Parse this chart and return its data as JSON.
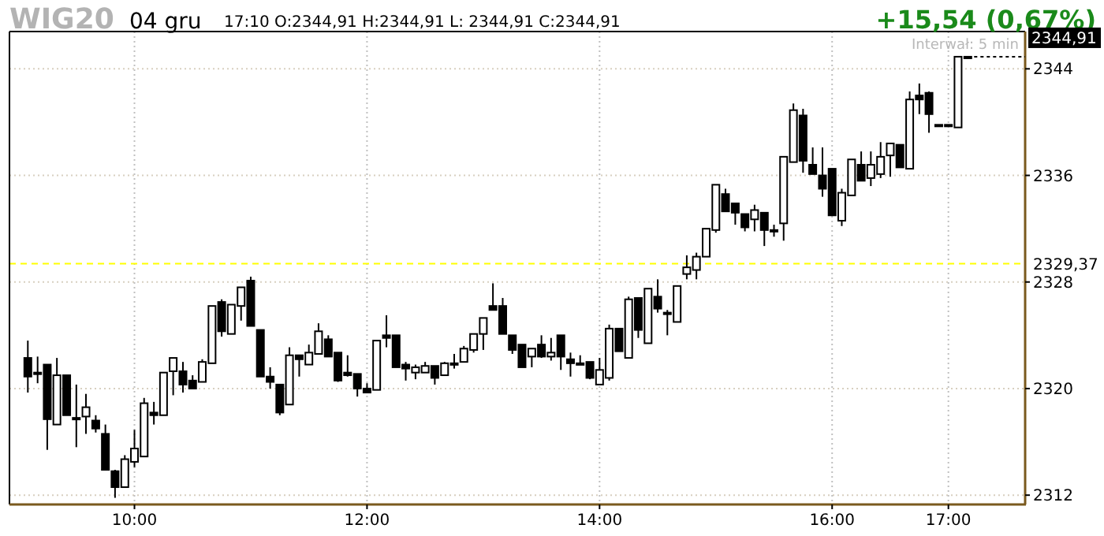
{
  "chart_data": {
    "type": "candlestick",
    "title": "WIG20",
    "subtitle": "04 gru",
    "annotations": [
      "17:10 O:2344,91 H:2344,91 L: 2344,91 C:2344,91",
      "+15,54 (0,67%)",
      "Interwał: 5 min",
      {
        "text": "2344,91",
        "x": 17.167,
        "y": 2344.91
      }
    ],
    "x": [
      9.083,
      9.167,
      9.25,
      9.333,
      9.417,
      9.5,
      9.583,
      9.667,
      9.75,
      9.833,
      9.917,
      10,
      10.083,
      10.167,
      10.25,
      10.333,
      10.417,
      10.5,
      10.583,
      10.667,
      10.75,
      10.833,
      10.917,
      11,
      11.083,
      11.167,
      11.25,
      11.333,
      11.417,
      11.5,
      11.583,
      11.667,
      11.75,
      11.833,
      11.917,
      12,
      12.083,
      12.167,
      12.25,
      12.333,
      12.417,
      12.5,
      12.583,
      12.667,
      12.75,
      12.833,
      12.917,
      13,
      13.083,
      13.167,
      13.25,
      13.333,
      13.417,
      13.5,
      13.583,
      13.667,
      13.75,
      13.833,
      13.917,
      14,
      14.083,
      14.167,
      14.25,
      14.333,
      14.417,
      14.5,
      14.583,
      14.667,
      14.75,
      14.833,
      14.917,
      15,
      15.083,
      15.167,
      15.25,
      15.333,
      15.417,
      15.5,
      15.583,
      15.667,
      15.75,
      15.833,
      15.917,
      16,
      16.083,
      16.167,
      16.25,
      16.333,
      16.417,
      16.5,
      16.583,
      16.667,
      16.75,
      16.833,
      16.917,
      17,
      17.083,
      17.167
    ],
    "ohlc": [
      [
        2322.3,
        2323.6,
        2319.7,
        2320.9
      ],
      [
        2321.2,
        2322.4,
        2320.4,
        2321.1
      ],
      [
        2321.8,
        2321.8,
        2315.4,
        2317.7
      ],
      [
        2317.3,
        2322.3,
        2317.3,
        2321.0
      ],
      [
        2321.0,
        2321.0,
        2318.0,
        2318.0
      ],
      [
        2317.8,
        2320.3,
        2315.6,
        2317.7
      ],
      [
        2317.9,
        2319.6,
        2316.6,
        2318.6
      ],
      [
        2317.6,
        2318.0,
        2316.7,
        2317.0
      ],
      [
        2316.6,
        2317.3,
        2313.9,
        2313.9
      ],
      [
        2313.8,
        2313.9,
        2311.8,
        2312.6
      ],
      [
        2312.6,
        2315.0,
        2312.6,
        2314.7
      ],
      [
        2314.5,
        2316.9,
        2314.1,
        2315.5
      ],
      [
        2314.9,
        2319.3,
        2314.9,
        2318.9
      ],
      [
        2318.2,
        2319.0,
        2317.3,
        2318.0
      ],
      [
        2318.0,
        2321.2,
        2318.0,
        2321.2
      ],
      [
        2321.3,
        2322.3,
        2319.5,
        2322.3
      ],
      [
        2321.3,
        2322.0,
        2319.7,
        2320.3
      ],
      [
        2320.6,
        2321.0,
        2320.0,
        2320.0
      ],
      [
        2320.5,
        2322.2,
        2320.5,
        2322.0
      ],
      [
        2321.9,
        2326.2,
        2321.9,
        2326.2
      ],
      [
        2326.5,
        2326.7,
        2323.9,
        2324.3
      ],
      [
        2324.1,
        2326.3,
        2324.1,
        2326.3
      ],
      [
        2326.2,
        2327.6,
        2325.1,
        2327.6
      ],
      [
        2328.1,
        2328.4,
        2324.7,
        2324.7
      ],
      [
        2324.4,
        2324.4,
        2320.9,
        2320.9
      ],
      [
        2320.9,
        2321.6,
        2320.0,
        2320.5
      ],
      [
        2320.3,
        2320.3,
        2318.0,
        2318.2
      ],
      [
        2318.8,
        2323.1,
        2318.8,
        2322.5
      ],
      [
        2322.5,
        2322.5,
        2320.9,
        2322.2
      ],
      [
        2321.8,
        2323.3,
        2321.8,
        2322.7
      ],
      [
        2322.6,
        2324.9,
        2322.6,
        2324.3
      ],
      [
        2323.7,
        2324.0,
        2322.4,
        2322.4
      ],
      [
        2322.7,
        2322.7,
        2320.5,
        2320.6
      ],
      [
        2321.2,
        2322.5,
        2320.9,
        2321.0
      ],
      [
        2321.1,
        2321.1,
        2319.4,
        2320.0
      ],
      [
        2320.0,
        2320.4,
        2319.7,
        2319.7
      ],
      [
        2319.9,
        2323.6,
        2319.9,
        2323.6
      ],
      [
        2324.0,
        2325.5,
        2323.1,
        2323.8
      ],
      [
        2324.0,
        2324.0,
        2321.6,
        2321.6
      ],
      [
        2321.8,
        2322.0,
        2320.6,
        2321.5
      ],
      [
        2321.2,
        2321.8,
        2320.7,
        2321.6
      ],
      [
        2321.2,
        2322.0,
        2321.2,
        2321.7
      ],
      [
        2321.7,
        2321.7,
        2320.3,
        2320.8
      ],
      [
        2321.0,
        2322.0,
        2321.0,
        2321.9
      ],
      [
        2321.9,
        2322.6,
        2321.5,
        2321.8
      ],
      [
        2322.0,
        2323.2,
        2322.0,
        2323.0
      ],
      [
        2322.9,
        2324.1,
        2322.7,
        2324.1
      ],
      [
        2324.1,
        2325.3,
        2322.9,
        2325.3
      ],
      [
        2326.2,
        2327.9,
        2325.9,
        2325.9
      ],
      [
        2326.2,
        2326.8,
        2324.1,
        2324.1
      ],
      [
        2324.0,
        2324.0,
        2322.6,
        2322.9
      ],
      [
        2323.3,
        2323.3,
        2321.6,
        2321.6
      ],
      [
        2322.4,
        2323.0,
        2321.6,
        2323.0
      ],
      [
        2323.3,
        2324.0,
        2322.3,
        2322.4
      ],
      [
        2322.4,
        2323.8,
        2322.1,
        2322.7
      ],
      [
        2324.0,
        2324.0,
        2321.4,
        2322.4
      ],
      [
        2322.2,
        2322.7,
        2320.9,
        2321.9
      ],
      [
        2321.9,
        2322.5,
        2321.9,
        2321.9
      ],
      [
        2322.0,
        2322.0,
        2320.7,
        2320.8
      ],
      [
        2320.3,
        2322.3,
        2320.3,
        2321.4
      ],
      [
        2320.8,
        2324.8,
        2320.6,
        2324.5
      ],
      [
        2324.5,
        2324.5,
        2322.8,
        2322.8
      ],
      [
        2322.3,
        2326.9,
        2322.3,
        2326.7
      ],
      [
        2326.8,
        2326.8,
        2323.8,
        2324.4
      ],
      [
        2323.4,
        2327.5,
        2323.4,
        2327.5
      ],
      [
        2326.9,
        2328.2,
        2325.7,
        2326.0
      ],
      [
        2325.7,
        2325.9,
        2324.0,
        2325.7
      ],
      [
        2325.0,
        2327.7,
        2325.0,
        2327.7
      ],
      [
        2328.6,
        2330.0,
        2328.2,
        2329.1
      ],
      [
        2328.9,
        2330.2,
        2328.2,
        2329.9
      ],
      [
        2329.9,
        2332.0,
        2329.9,
        2332.0
      ],
      [
        2331.9,
        2335.3,
        2331.7,
        2335.3
      ],
      [
        2334.6,
        2335.0,
        2333.3,
        2333.3
      ],
      [
        2333.9,
        2333.9,
        2332.3,
        2333.2
      ],
      [
        2333.1,
        2333.1,
        2331.8,
        2332.1
      ],
      [
        2332.7,
        2333.8,
        2331.8,
        2333.4
      ],
      [
        2333.2,
        2333.2,
        2330.7,
        2331.9
      ],
      [
        2331.9,
        2332.3,
        2331.4,
        2331.9
      ],
      [
        2332.4,
        2337.4,
        2331.1,
        2337.4
      ],
      [
        2337.0,
        2341.4,
        2337.0,
        2340.9
      ],
      [
        2340.5,
        2341.0,
        2336.2,
        2337.1
      ],
      [
        2336.8,
        2338.1,
        2336.1,
        2336.1
      ],
      [
        2336.0,
        2338.1,
        2334.4,
        2335.0
      ],
      [
        2336.5,
        2336.5,
        2333.0,
        2333.0
      ],
      [
        2332.6,
        2335.0,
        2332.2,
        2334.7
      ],
      [
        2334.5,
        2337.2,
        2334.5,
        2337.2
      ],
      [
        2336.8,
        2337.8,
        2335.6,
        2335.6
      ],
      [
        2335.8,
        2337.8,
        2335.2,
        2336.8
      ],
      [
        2336.1,
        2338.5,
        2335.8,
        2337.4
      ],
      [
        2337.5,
        2338.4,
        2335.9,
        2338.4
      ],
      [
        2338.3,
        2338.3,
        2336.6,
        2336.6
      ],
      [
        2336.5,
        2342.3,
        2336.5,
        2341.7
      ],
      [
        2342.0,
        2342.9,
        2340.6,
        2341.7
      ],
      [
        2342.2,
        2342.3,
        2339.2,
        2340.6
      ],
      [
        2339.8,
        2339.8,
        2339.8,
        2339.8
      ],
      [
        2339.8,
        2339.8,
        2339.8,
        2339.8
      ],
      [
        2339.6,
        2344.91,
        2339.6,
        2344.91
      ],
      [
        2344.91,
        2344.91,
        2344.91,
        2344.91
      ]
    ],
    "xlim": [
      8.925,
      17.66
    ],
    "xticks": [
      {
        "value": 10,
        "label": "10:00"
      },
      {
        "value": 12,
        "label": "12:00"
      },
      {
        "value": 14,
        "label": "14:00"
      },
      {
        "value": 16,
        "label": "16:00"
      },
      {
        "value": 17,
        "label": "17:00"
      }
    ],
    "ylim": [
      2311.3,
      2346.8
    ],
    "yticks": [
      2312,
      2320,
      2328,
      2336,
      2344
    ],
    "ref_lines": [
      {
        "axis": "y",
        "value": 2329.37,
        "label": "2329,37",
        "color": "#ffff00",
        "line_style": "dashed"
      }
    ],
    "grid": true
  }
}
